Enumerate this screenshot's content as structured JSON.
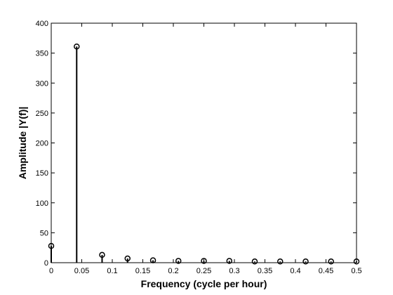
{
  "chart_data": {
    "type": "stem",
    "x_label": "Frequency (cycle per hour)",
    "y_label": "Amplitude |Y(f)|",
    "x": [
      0,
      0.0417,
      0.0833,
      0.125,
      0.1667,
      0.2083,
      0.25,
      0.2917,
      0.3333,
      0.375,
      0.4167,
      0.4583,
      0.5
    ],
    "values": [
      28,
      361,
      13,
      7,
      4,
      3,
      3,
      3,
      2,
      2,
      2,
      2,
      2
    ],
    "color": "#000000",
    "marker": "open-circle",
    "xlim": [
      0,
      0.5
    ],
    "xticks": [
      0,
      0.05,
      0.1,
      0.15,
      0.2,
      0.25,
      0.3,
      0.35,
      0.4,
      0.45,
      0.5
    ],
    "ylim": [
      0,
      400
    ],
    "yticks": [
      0,
      50,
      100,
      150,
      200,
      250,
      300,
      350,
      400
    ],
    "grid": false
  }
}
